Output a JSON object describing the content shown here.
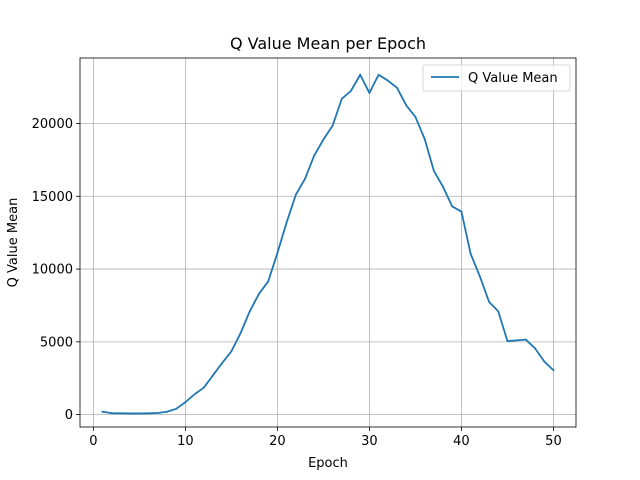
{
  "chart_data": {
    "type": "line",
    "title": "Q Value Mean per Epoch",
    "xlabel": "Epoch",
    "ylabel": "Q Value Mean",
    "xlim": [
      -1.45,
      52.45
    ],
    "ylim": [
      -850,
      24500
    ],
    "xticks": [
      0,
      10,
      20,
      30,
      40,
      50
    ],
    "yticks": [
      0,
      5000,
      10000,
      15000,
      20000
    ],
    "grid": true,
    "legend_position": "top-right",
    "line_color": "#1f77b4",
    "series": [
      {
        "name": "Q Value Mean",
        "x": [
          1,
          2,
          3,
          4,
          5,
          6,
          7,
          8,
          9,
          10,
          11,
          12,
          13,
          14,
          15,
          16,
          17,
          18,
          19,
          20,
          21,
          22,
          23,
          24,
          25,
          26,
          27,
          28,
          29,
          30,
          31,
          32,
          33,
          34,
          35,
          36,
          37,
          38,
          39,
          40,
          41,
          42,
          43,
          44,
          45,
          46,
          47,
          48,
          49,
          50
        ],
        "y": [
          200,
          100,
          90,
          80,
          80,
          90,
          110,
          200,
          400,
          850,
          1400,
          1850,
          2700,
          3550,
          4350,
          5600,
          7100,
          8300,
          9150,
          11100,
          13200,
          15100,
          16200,
          17800,
          18900,
          19850,
          21700,
          22250,
          23350,
          22100,
          23350,
          22950,
          22450,
          21250,
          20450,
          18950,
          16750,
          15650,
          14300,
          13950,
          11050,
          9500,
          7750,
          7100,
          5050,
          5100,
          5150,
          4550,
          3650,
          3050
        ]
      }
    ]
  }
}
